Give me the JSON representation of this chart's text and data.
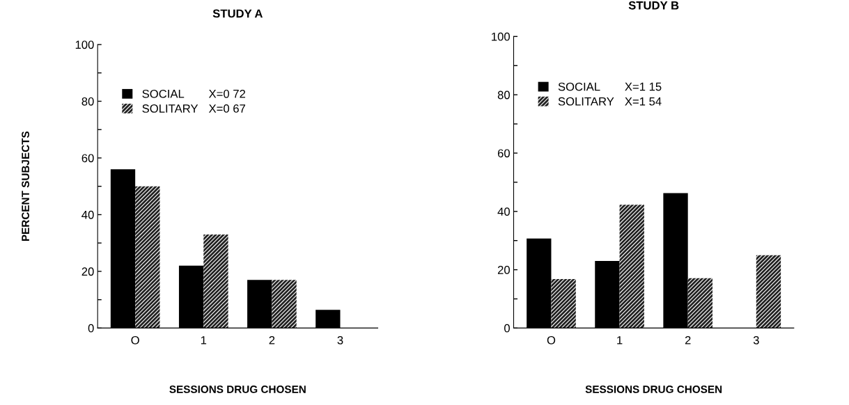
{
  "chart_data": [
    {
      "type": "bar",
      "title": "STUDY A",
      "xlabel": "SESSIONS DRUG CHOSEN",
      "ylabel": "PERCENT SUBJECTS",
      "categories": [
        "O",
        "1",
        "2",
        "3"
      ],
      "series": [
        {
          "name": "SOCIAL",
          "color": "#000000",
          "values": [
            56,
            22,
            17,
            6.4
          ]
        },
        {
          "name": "SOLITARY",
          "color": "#222222",
          "values": [
            50,
            33,
            17,
            0
          ]
        }
      ],
      "annotations": [
        "X=0 72",
        "X=0 67"
      ],
      "ylim": [
        0,
        100
      ],
      "yticks": [
        0,
        {
          "value": 10,
          "label": null
        },
        20,
        {
          "value": 30,
          "label": null
        },
        40,
        {
          "value": 50,
          "label": null
        },
        60,
        {
          "value": 70,
          "label": null
        },
        80,
        {
          "value": 90,
          "label": null
        },
        100
      ],
      "legend": "top left",
      "grid": false
    },
    {
      "type": "bar",
      "title": "STUDY B",
      "xlabel": "SESSIONS DRUG CHOSEN",
      "categories": [
        "O",
        "1",
        "2",
        "3"
      ],
      "series": [
        {
          "name": "SOCIAL",
          "color": "#000000",
          "values": [
            30.7,
            23,
            46.3,
            0
          ]
        },
        {
          "name": "SOLITARY",
          "color": "#222222",
          "values": [
            16.8,
            42.3,
            17.1,
            25
          ]
        }
      ],
      "annotations": [
        "X=1 15",
        "X=1 54"
      ],
      "ylim": [
        0,
        100
      ],
      "yticks": [
        0,
        {
          "value": 10,
          "label": null
        },
        20,
        {
          "value": 30,
          "label": null
        },
        40,
        {
          "value": 50,
          "label": null
        },
        60,
        {
          "value": 70,
          "label": null
        },
        80,
        {
          "value": 90,
          "label": null
        },
        100
      ],
      "legend": "top left",
      "grid": false
    }
  ]
}
